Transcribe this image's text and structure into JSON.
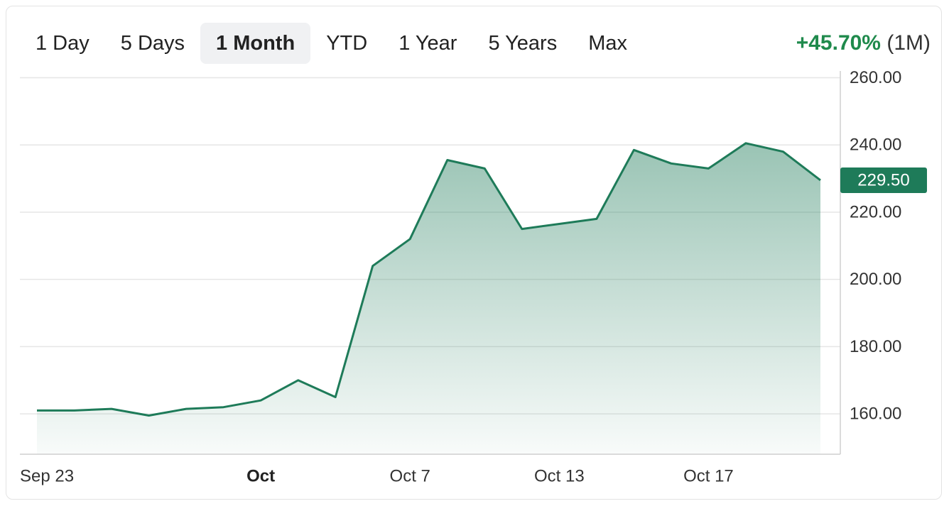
{
  "tabs": [
    {
      "label": "1 Day",
      "active": false
    },
    {
      "label": "5 Days",
      "active": false
    },
    {
      "label": "1 Month",
      "active": true
    },
    {
      "label": "YTD",
      "active": false
    },
    {
      "label": "1 Year",
      "active": false
    },
    {
      "label": "5 Years",
      "active": false
    },
    {
      "label": "Max",
      "active": false
    }
  ],
  "change": {
    "percent": "+45.70%",
    "period": "(1M)"
  },
  "colors": {
    "line": "#1e7b59",
    "positive": "#1f8a4c",
    "badge": "#1e7b59"
  },
  "chart_data": {
    "type": "area",
    "title": "",
    "xlabel": "",
    "ylabel": "",
    "ylim": [
      148,
      262
    ],
    "yticks": [
      "260.00",
      "240.00",
      "220.00",
      "200.00",
      "180.00",
      "160.00"
    ],
    "ytick_values": [
      260,
      240,
      220,
      200,
      180,
      160
    ],
    "xtick_labels": [
      {
        "label": "Sep 23",
        "index": 0,
        "bold": false
      },
      {
        "label": "Oct",
        "index": 6,
        "bold": true
      },
      {
        "label": "Oct 7",
        "index": 10,
        "bold": false
      },
      {
        "label": "Oct 13",
        "index": 14,
        "bold": false
      },
      {
        "label": "Oct 17",
        "index": 18,
        "bold": false
      }
    ],
    "last_value_label": "229.50",
    "grid": true,
    "series": [
      {
        "values": [
          161.0,
          161.0,
          161.5,
          159.5,
          161.5,
          162.0,
          164.0,
          170.0,
          165.0,
          204.0,
          212.0,
          235.5,
          233.0,
          215.0,
          216.5,
          218.0,
          238.5,
          234.5,
          233.0,
          240.5,
          238.0,
          229.5
        ]
      }
    ]
  }
}
